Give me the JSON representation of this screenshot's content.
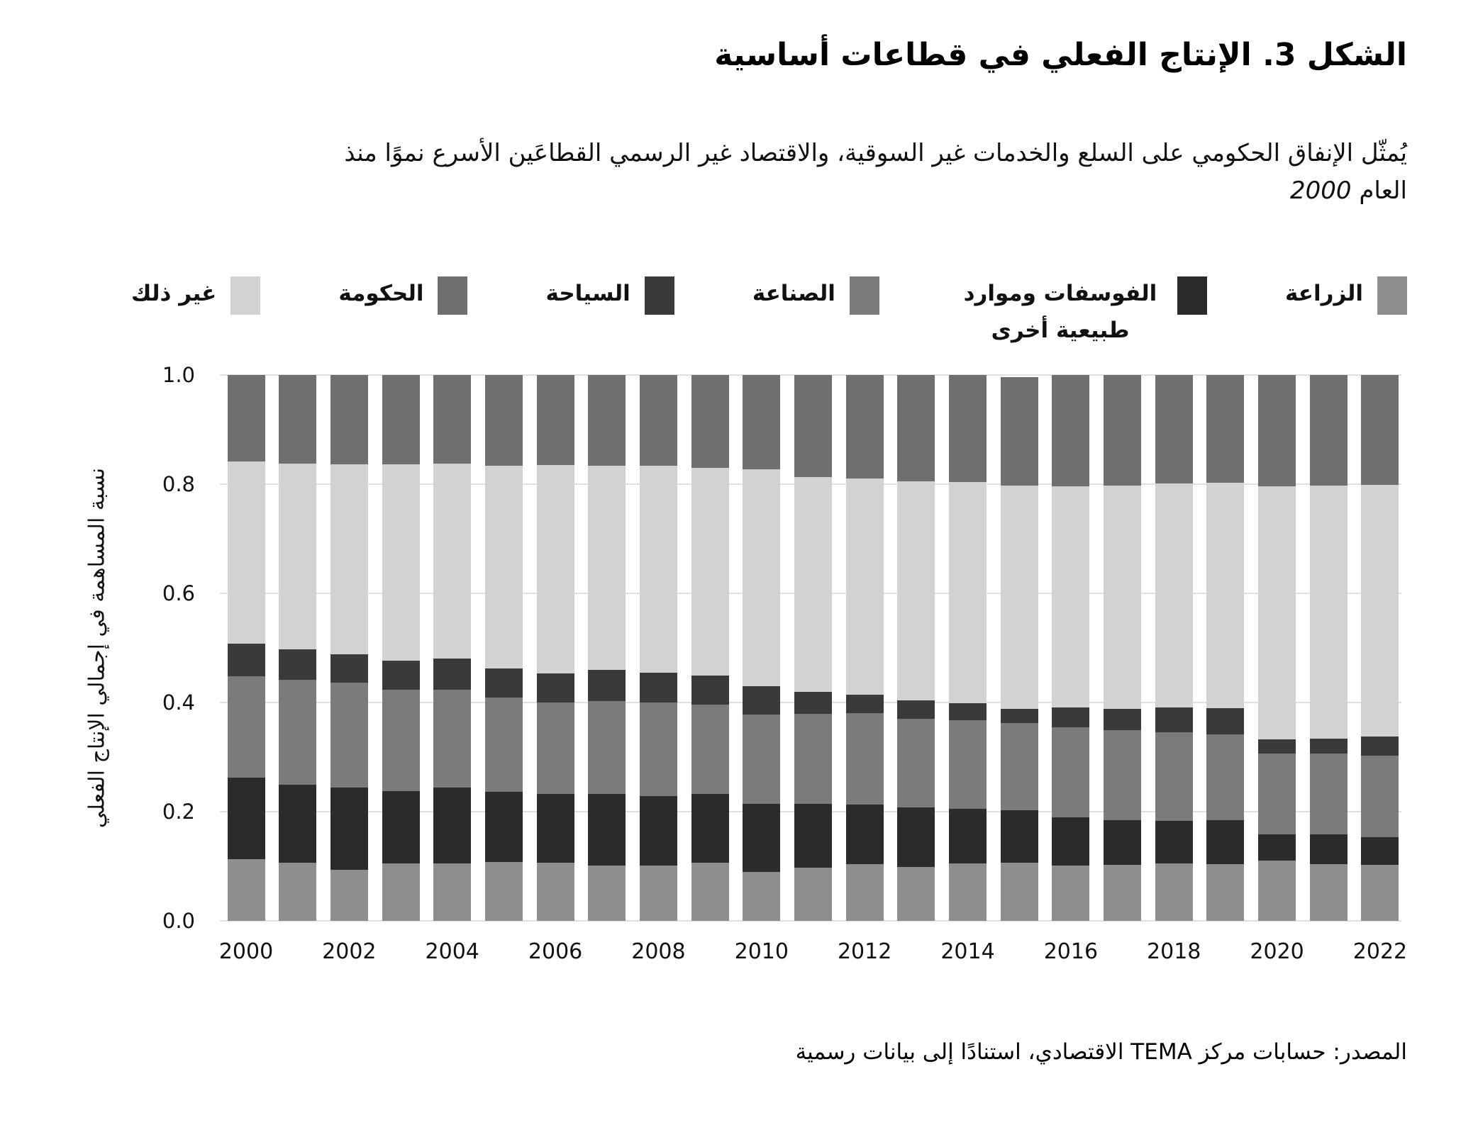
{
  "page": {
    "title": "الشكل 3. الإنتاج الفعلي في قطاعات أساسية",
    "subtitle_text": "يُمثّل الإنفاق الحكومي على السلع والخدمات غير السوقية، والاقتصاد غير الرسمي القطاعَين الأسرع نموًا منذ العام ",
    "subtitle_year": "2000",
    "source": "المصدر: حسابات مركز TEMA الاقتصادي، استنادًا إلى بيانات رسمية"
  },
  "colors": {
    "background": "#ffffff",
    "text": "#111111",
    "gridline": "#e0e0e0",
    "agriculture": "#8e8e8e",
    "phosphates": "#2b2b2b",
    "industry": "#7b7b7b",
    "tourism": "#3a3a3a",
    "other": "#d2d2d2",
    "government": "#6f6f6f"
  },
  "legend": [
    {
      "key": "agriculture",
      "label": "الزراعة",
      "color": "#8e8e8e"
    },
    {
      "key": "phosphates",
      "label": "الفوسفات وموارد طبيعية أخرى",
      "color": "#2b2b2b"
    },
    {
      "key": "industry",
      "label": "الصناعة",
      "color": "#7b7b7b"
    },
    {
      "key": "tourism",
      "label": "السياحة",
      "color": "#3a3a3a"
    },
    {
      "key": "government",
      "label": "الحكومة",
      "color": "#6f6f6f"
    },
    {
      "key": "other",
      "label": "غير ذلك",
      "color": "#d2d2d2"
    }
  ],
  "chart_data": {
    "type": "bar",
    "stacked": true,
    "title": "الشكل 3. الإنتاج الفعلي في قطاعات أساسية",
    "ylabel": "نسبة المساهمة في إجمالي الإنتاج الفعلي",
    "xlabel": "",
    "ylim": [
      0,
      1
    ],
    "grid": true,
    "legend_position": "top",
    "y_ticks": [
      0,
      0.2,
      0.4,
      0.6,
      0.8,
      1.0
    ],
    "y_tick_labels": [
      "0.0",
      "0.2",
      "0.4",
      "0.6",
      "0.8",
      "1.0"
    ],
    "x": [
      2000,
      2001,
      2002,
      2003,
      2004,
      2005,
      2006,
      2007,
      2008,
      2009,
      2010,
      2011,
      2012,
      2013,
      2014,
      2015,
      2016,
      2017,
      2018,
      2019,
      2020,
      2021,
      2022
    ],
    "x_tick_step": 2,
    "series": [
      {
        "key": "agriculture",
        "name": "الزراعة",
        "color": "#8e8e8e",
        "values": [
          0.113,
          0.106,
          0.094,
          0.105,
          0.105,
          0.108,
          0.107,
          0.101,
          0.101,
          0.107,
          0.089,
          0.098,
          0.104,
          0.099,
          0.105,
          0.107,
          0.101,
          0.102,
          0.105,
          0.104,
          0.111,
          0.104,
          0.103
        ]
      },
      {
        "key": "phosphates",
        "name": "الفوسفات وموارد طبيعية أخرى",
        "color": "#2b2b2b",
        "values": [
          0.15,
          0.143,
          0.15,
          0.133,
          0.139,
          0.128,
          0.125,
          0.132,
          0.128,
          0.126,
          0.125,
          0.116,
          0.109,
          0.109,
          0.1,
          0.096,
          0.089,
          0.083,
          0.078,
          0.08,
          0.048,
          0.054,
          0.05
        ]
      },
      {
        "key": "industry",
        "name": "الصناعة",
        "color": "#7b7b7b",
        "values": [
          0.185,
          0.193,
          0.192,
          0.186,
          0.18,
          0.173,
          0.168,
          0.169,
          0.171,
          0.163,
          0.164,
          0.165,
          0.167,
          0.162,
          0.162,
          0.159,
          0.165,
          0.165,
          0.163,
          0.158,
          0.147,
          0.148,
          0.15
        ]
      },
      {
        "key": "tourism",
        "name": "السياحة",
        "color": "#3a3a3a",
        "values": [
          0.06,
          0.055,
          0.052,
          0.053,
          0.056,
          0.053,
          0.053,
          0.058,
          0.055,
          0.053,
          0.052,
          0.041,
          0.034,
          0.034,
          0.032,
          0.027,
          0.036,
          0.038,
          0.045,
          0.048,
          0.027,
          0.028,
          0.035
        ]
      },
      {
        "key": "other",
        "name": "غير ذلك",
        "color": "#d2d2d2",
        "values": [
          0.333,
          0.341,
          0.349,
          0.359,
          0.358,
          0.372,
          0.382,
          0.374,
          0.379,
          0.381,
          0.397,
          0.393,
          0.397,
          0.401,
          0.405,
          0.409,
          0.405,
          0.41,
          0.41,
          0.412,
          0.463,
          0.464,
          0.461
        ]
      },
      {
        "key": "government",
        "name": "الحكومة",
        "color": "#6f6f6f",
        "values": [
          0.159,
          0.162,
          0.163,
          0.164,
          0.162,
          0.166,
          0.165,
          0.166,
          0.166,
          0.17,
          0.173,
          0.187,
          0.189,
          0.195,
          0.196,
          0.198,
          0.204,
          0.202,
          0.199,
          0.198,
          0.204,
          0.202,
          0.201
        ]
      }
    ]
  }
}
